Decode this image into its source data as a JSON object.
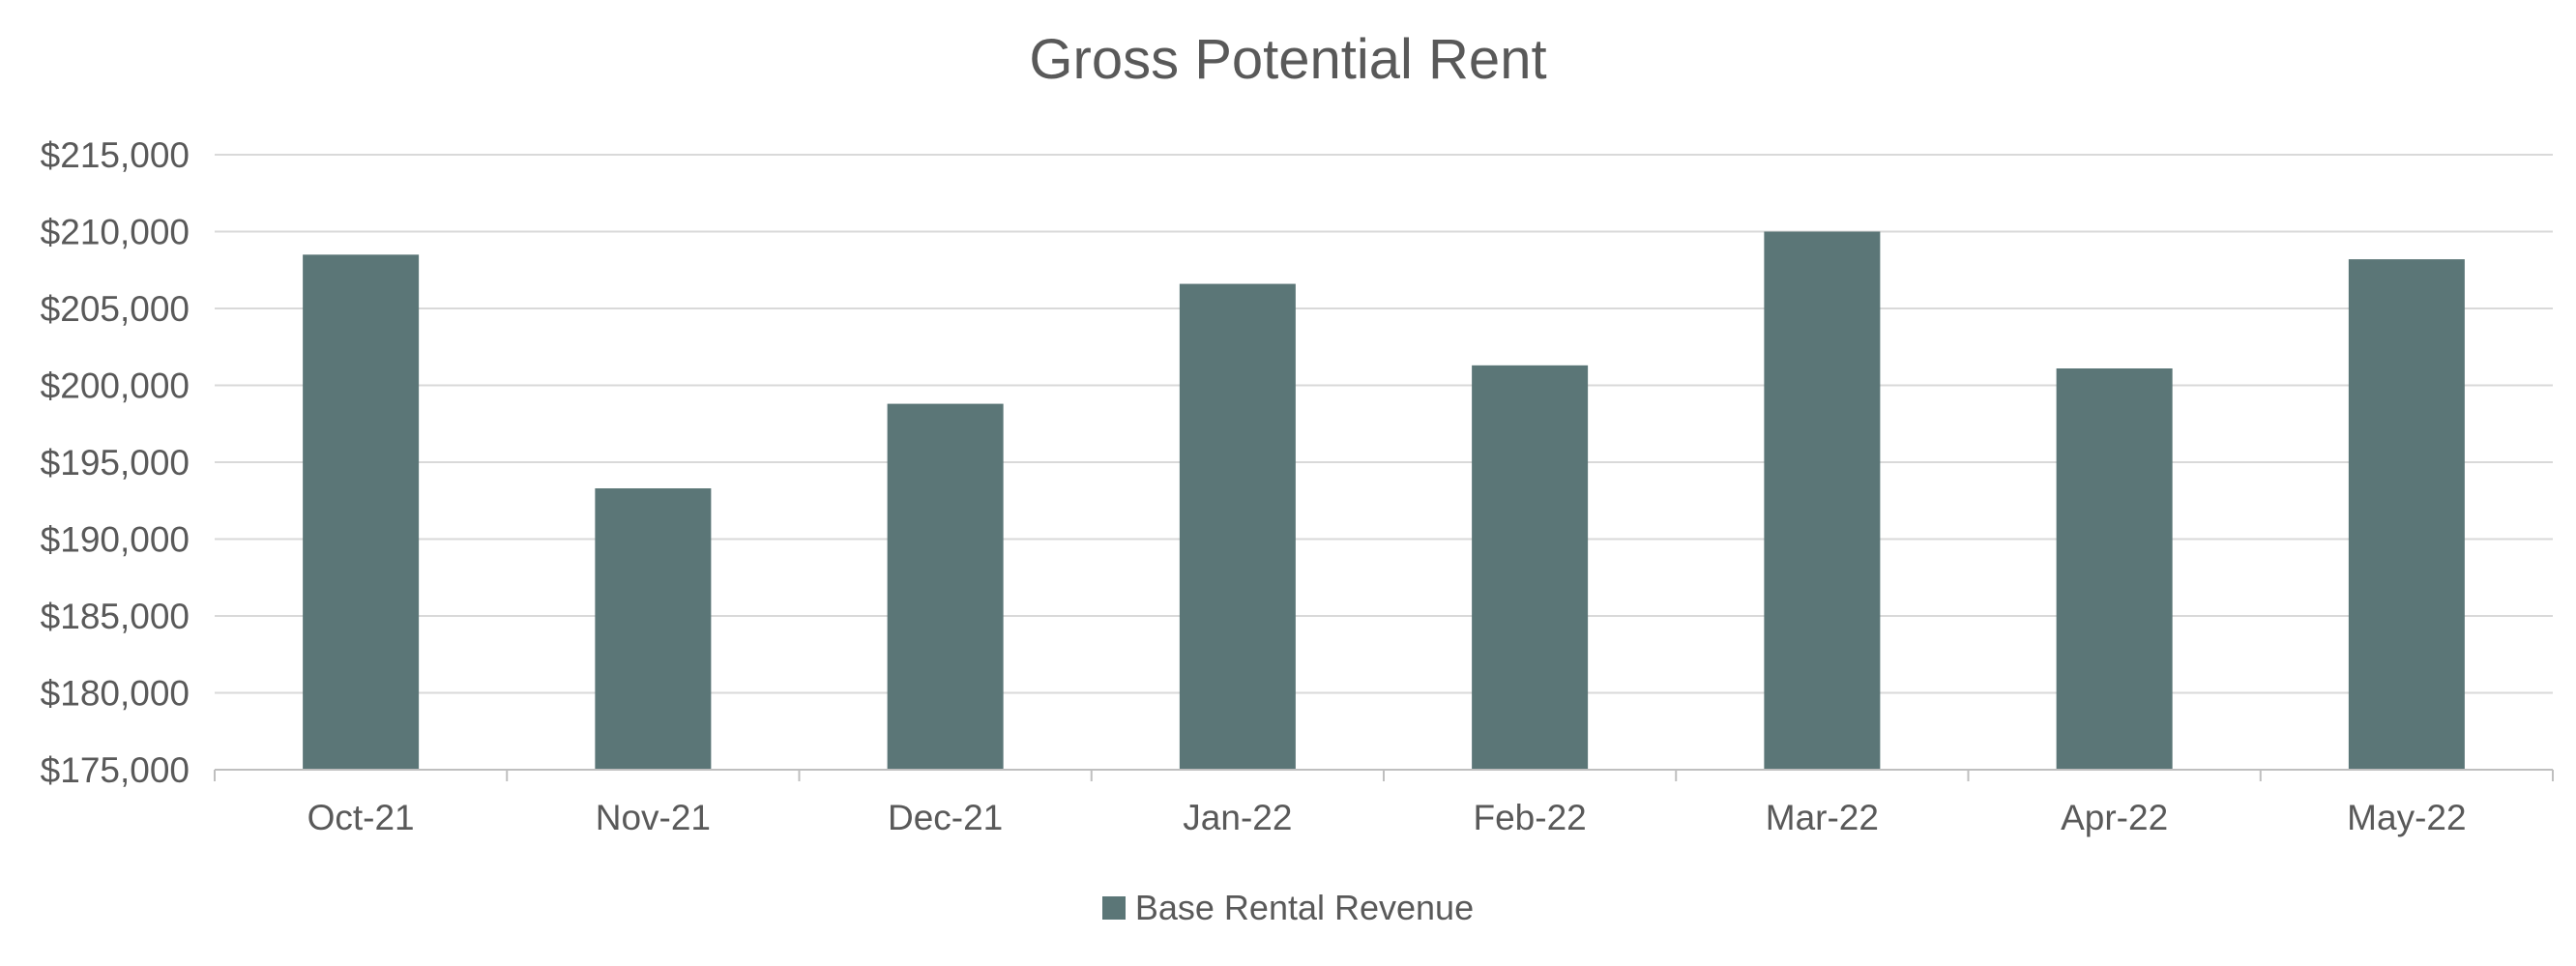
{
  "chart_data": {
    "type": "bar",
    "title": "Gross Potential Rent",
    "xlabel": "",
    "ylabel": "",
    "categories": [
      "Oct-21",
      "Nov-21",
      "Dec-21",
      "Jan-22",
      "Feb-22",
      "Mar-22",
      "Apr-22",
      "May-22"
    ],
    "series": [
      {
        "name": "Base Rental Revenue",
        "color": "#5b7677",
        "values": [
          208500,
          193300,
          198800,
          206600,
          201300,
          210000,
          201100,
          208200
        ]
      }
    ],
    "ylim": [
      175000,
      215000
    ],
    "yticks": [
      175000,
      180000,
      185000,
      190000,
      195000,
      200000,
      205000,
      210000,
      215000
    ],
    "ytick_labels": [
      "$175,000",
      "$180,000",
      "$185,000",
      "$190,000",
      "$195,000",
      "$200,000",
      "$205,000",
      "$210,000",
      "$215,000"
    ],
    "grid": true,
    "legend_position": "bottom"
  },
  "colors": {
    "bar": "#5b7677",
    "grid": "#d9d9d9",
    "axis": "#bfbfbf",
    "text": "#595959"
  }
}
